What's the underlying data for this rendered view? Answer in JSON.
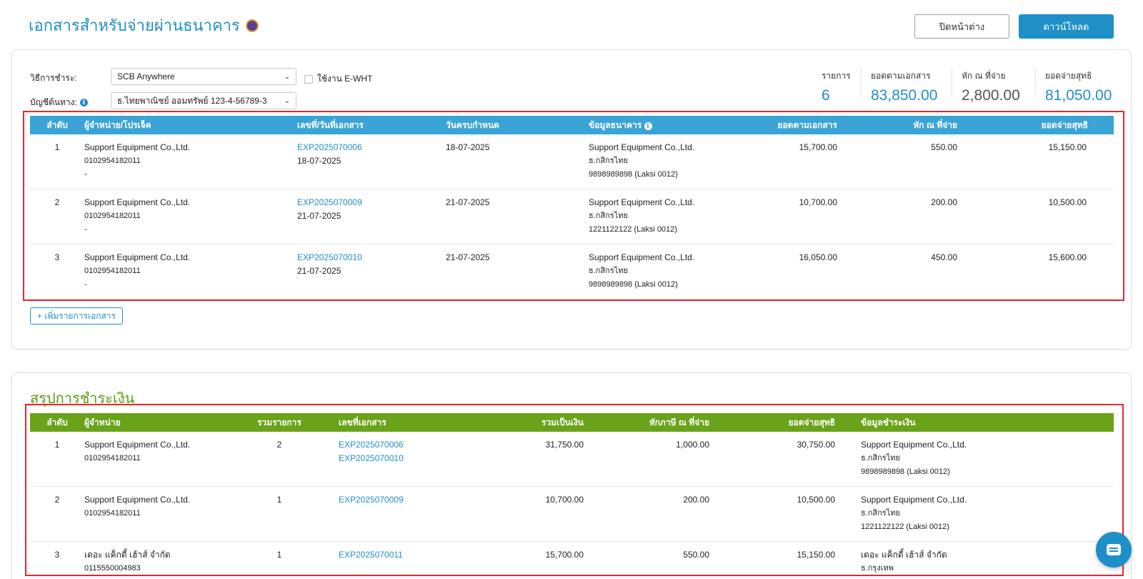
{
  "header": {
    "title": "เอกสารสำหรับจ่ายผ่านธนาคาร",
    "close_label": "ปิดหน้าต่าง",
    "download_label": "ดาวน์โหลด"
  },
  "payment_form": {
    "method_label": "วิธีการชำระ:",
    "method_value": "SCB Anywhere",
    "account_label": "บัญชีต้นทาง:",
    "account_value": "ธ.ไทยพาณิชย์ ออมทรัพย์ 123-4-56789-3",
    "ewht_label": "ใช้งาน E-WHT"
  },
  "summary": [
    {
      "label": "รายการ",
      "value": "6"
    },
    {
      "label": "ยอดตามเอกสาร",
      "value": "83,850.00"
    },
    {
      "label": "หัก ณ ที่จ่าย",
      "value": "2,800.00"
    },
    {
      "label": "ยอดจ่ายสุทธิ",
      "value": "81,050.00"
    }
  ],
  "documents_table": {
    "headers": [
      "ลำดับ",
      "ผู้จำหน่าย/โปรเจ็ค",
      "เลขที่/วันที่เอกสาร",
      "วันครบกำหนด",
      "ข้อมูลธนาคาร",
      "ยอดตามเอกสาร",
      "หัก ณ ที่จ่าย",
      "ยอดจ่ายสุทธิ"
    ],
    "rows": [
      {
        "no": "1",
        "vendor": "Support Equipment Co.,Ltd.",
        "tax_id": "0102954182011",
        "project": "-",
        "doc_no": "EXP2025070006",
        "doc_date": "18-07-2025",
        "due_date": "18-07-2025",
        "bank_name": "Support Equipment Co.,Ltd.",
        "bank": "ธ.กสิกรไทย",
        "account": "9898989898 (Laksi 0012)",
        "amount": "15,700.00",
        "wht": "550.00",
        "net": "15,150.00"
      },
      {
        "no": "2",
        "vendor": "Support Equipment Co.,Ltd.",
        "tax_id": "0102954182011",
        "project": "-",
        "doc_no": "EXP2025070009",
        "doc_date": "21-07-2025",
        "due_date": "21-07-2025",
        "bank_name": "Support Equipment Co.,Ltd.",
        "bank": "ธ.กสิกรไทย",
        "account": "1221122122 (Laksi 0012)",
        "amount": "10,700.00",
        "wht": "200.00",
        "net": "10,500.00"
      },
      {
        "no": "3",
        "vendor": "Support Equipment Co.,Ltd.",
        "tax_id": "0102954182011",
        "project": "-",
        "doc_no": "EXP2025070010",
        "doc_date": "21-07-2025",
        "due_date": "21-07-2025",
        "bank_name": "Support Equipment Co.,Ltd.",
        "bank": "ธ.กสิกรไทย",
        "account": "9898989898 (Laksi 0012)",
        "amount": "16,050.00",
        "wht": "450.00",
        "net": "15,600.00"
      }
    ]
  },
  "add_document_label": "+ เพิ่มรายการเอกสาร",
  "payment_summary": {
    "title": "สรุปการชำระเงิน",
    "headers": [
      "ลำดับ",
      "ผู้จำหน่าย",
      "รวมรายการ",
      "เลขที่เอกสาร",
      "รวมเป็นเงิน",
      "หักภาษี ณ ที่จ่าย",
      "ยอดจ่ายสุทธิ",
      "ข้อมูลชำระเงิน"
    ],
    "rows": [
      {
        "no": "1",
        "vendor": "Support Equipment Co.,Ltd.",
        "tax_id": "0102954182011",
        "count": "2",
        "docs": [
          "EXP2025070006",
          "EXP2025070010"
        ],
        "total": "31,750.00",
        "wht": "1,000.00",
        "net": "30,750.00",
        "pay_name": "Support Equipment Co.,Ltd.",
        "pay_bank": "ธ.กสิกรไทย",
        "pay_account": "9898989898 (Laksi 0012)"
      },
      {
        "no": "2",
        "vendor": "Support Equipment Co.,Ltd.",
        "tax_id": "0102954182011",
        "count": "1",
        "docs": [
          "EXP2025070009"
        ],
        "total": "10,700.00",
        "wht": "200.00",
        "net": "10,500.00",
        "pay_name": "Support Equipment Co.,Ltd.",
        "pay_bank": "ธ.กสิกรไทย",
        "pay_account": "1221122122 (Laksi 0012)"
      },
      {
        "no": "3",
        "vendor": "เดอะ แค็กดี้ เฮ้าส์ จำกัด",
        "tax_id": "0115550004983",
        "count": "1",
        "docs": [
          "EXP2025070011"
        ],
        "total": "15,700.00",
        "wht": "550.00",
        "net": "15,150.00",
        "pay_name": "เดอะ แค็กดี้ เฮ้าส์ จำกัด",
        "pay_bank": "ธ.กรุงเทพ",
        "pay_account": ""
      }
    ]
  },
  "colors": {
    "accent": "#1f8fc7",
    "table_header_blue": "#3aa4d6",
    "table_header_green": "#6aa21a",
    "highlight": "#e8262d"
  },
  "icons": {
    "title": "shield-badge-icon",
    "info": "info-icon",
    "chat": "chat-icon"
  }
}
